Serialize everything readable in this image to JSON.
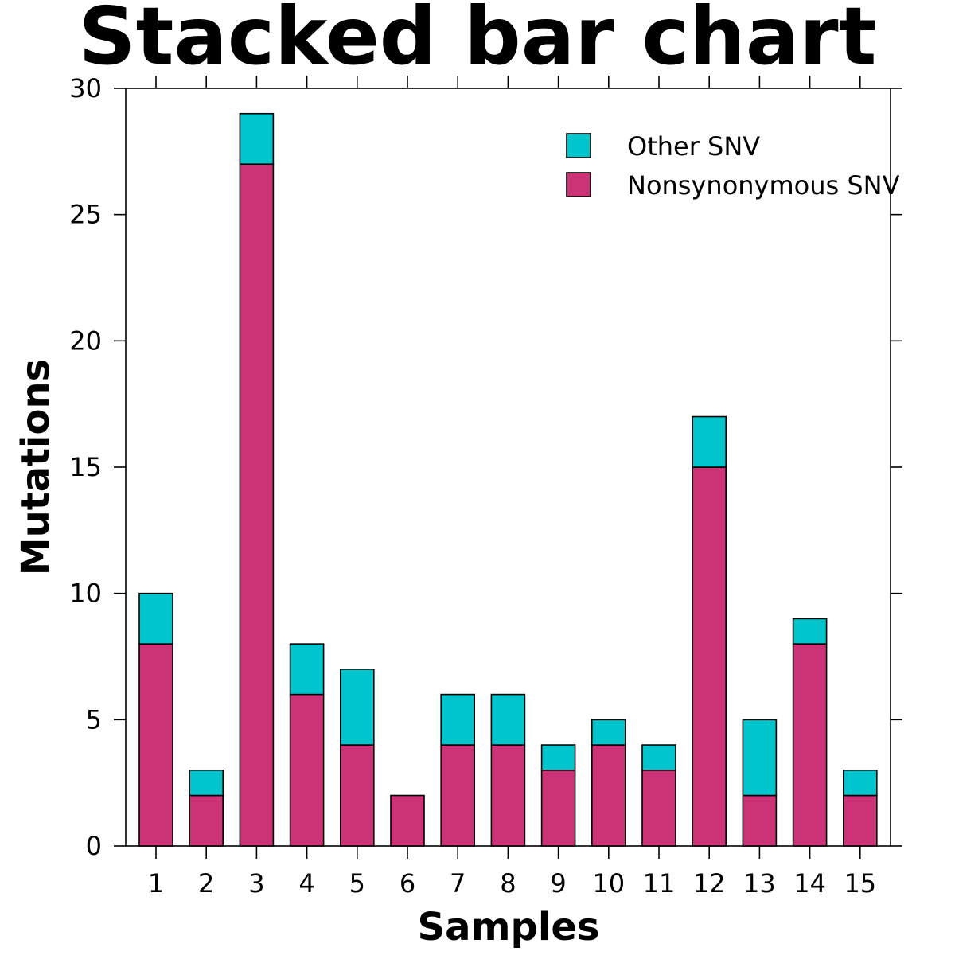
{
  "chart_data": {
    "type": "bar",
    "stacked": true,
    "title": "Stacked bar chart",
    "xlabel": "Samples",
    "ylabel": "Mutations",
    "categories": [
      "1",
      "2",
      "3",
      "4",
      "5",
      "6",
      "7",
      "8",
      "9",
      "10",
      "11",
      "12",
      "13",
      "14",
      "15"
    ],
    "series": [
      {
        "name": "Nonsynonymous SNV",
        "color": "#cc3377",
        "values": [
          8,
          2,
          27,
          6,
          4,
          2,
          4,
          4,
          3,
          4,
          3,
          15,
          2,
          8,
          2
        ]
      },
      {
        "name": "Other SNV",
        "color": "#00c5cd",
        "values": [
          2,
          1,
          2,
          2,
          3,
          0,
          2,
          2,
          1,
          1,
          1,
          2,
          3,
          1,
          1
        ]
      }
    ],
    "ylim": [
      0,
      30
    ],
    "yticks": [
      0,
      5,
      10,
      15,
      20,
      25,
      30
    ],
    "legend_order": [
      "Other SNV",
      "Nonsynonymous SNV"
    ],
    "legend_position": "top-right",
    "grid": false
  }
}
